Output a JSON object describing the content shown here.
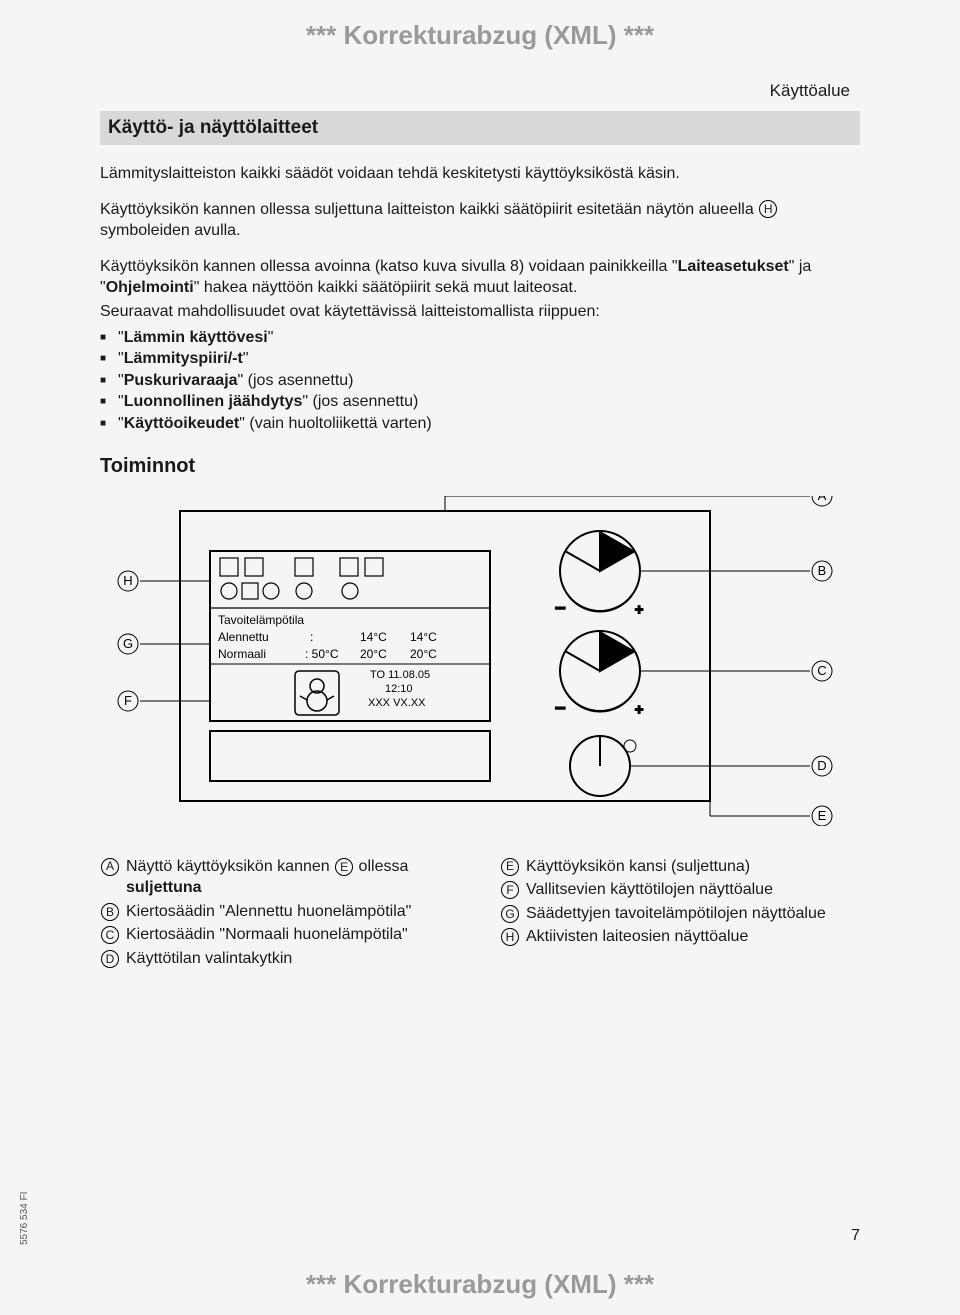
{
  "banner": "*** Korrekturabzug (XML) ***",
  "topRight": "Käyttöalue",
  "sectionTitle": "Käyttö- ja näyttölaitteet",
  "para1": "Lämmityslaitteiston kaikki säädöt voidaan tehdä keskitetysti käyttöyksiköstä käsin.",
  "para2a": "Käyttöyksikön kannen ollessa suljettuna laitteiston kaikki säätöpiirit esitetään näytön alueella ",
  "para2_letter": "H",
  "para2b": " symboleiden avulla.",
  "para3": "Käyttöyksikön kannen ollessa avoinna (katso kuva sivulla 8) voidaan painikkeilla \"Laiteasetukset\" ja \"Ohjelmointi\" hakea näyttöön kaikki säätöpiirit sekä muut laiteosat.",
  "para4": "Seuraavat mahdollisuudet ovat käytettävissä laitteistomallista riippuen:",
  "bullets": [
    "\"Lämmin käyttövesi\"",
    "\"Lämmityspiiri/-t\"",
    "\"Puskurivaraaja\" (jos asennettu)",
    "\"Luonnollinen jäähdytys\" (jos asennettu)",
    "\"Käyttöoikeudet\" (vain huoltoliikettä varten)"
  ],
  "subheading": "Toiminnot",
  "diagram": {
    "callouts": [
      "A",
      "B",
      "C",
      "D",
      "E",
      "F",
      "G",
      "H"
    ],
    "display": {
      "line1": "Tavoitelämpötila",
      "line2_label": "Alennettu",
      "line2_c": ":",
      "line2_v1": "14°C",
      "line2_v2": "14°C",
      "line3_label": "Normaali",
      "line3_c": ": 50°C",
      "line3_v1": "20°C",
      "line3_v2": "20°C",
      "date": "TO 11.08.05",
      "time": "12:10",
      "ver": "XXX VX.XX"
    }
  },
  "legendLeft": [
    {
      "l": "A",
      "t_a": "Näyttö käyttöyksikön kannen ",
      "mid": "E",
      "t_b": " ollessa suljettuna",
      "bold": "suljettuna"
    },
    {
      "l": "B",
      "t": "Kiertosäädin \"Alennettu huonelämpötila\""
    },
    {
      "l": "C",
      "t": "Kiertosäädin \"Normaali huonelämpötila\""
    },
    {
      "l": "D",
      "t": "Käyttötilan valintakytkin"
    }
  ],
  "legendRight": [
    {
      "l": "E",
      "t": "Käyttöyksikön kansi (suljettuna)"
    },
    {
      "l": "F",
      "t": "Vallitsevien käyttötilojen näyttöalue"
    },
    {
      "l": "G",
      "t": "Säädettyjen tavoitelämpötilojen näyttöalue"
    },
    {
      "l": "H",
      "t": "Aktiivisten laiteosien näyttöalue"
    }
  ],
  "sideNote": "5576 534 FI",
  "pageNum": "7"
}
